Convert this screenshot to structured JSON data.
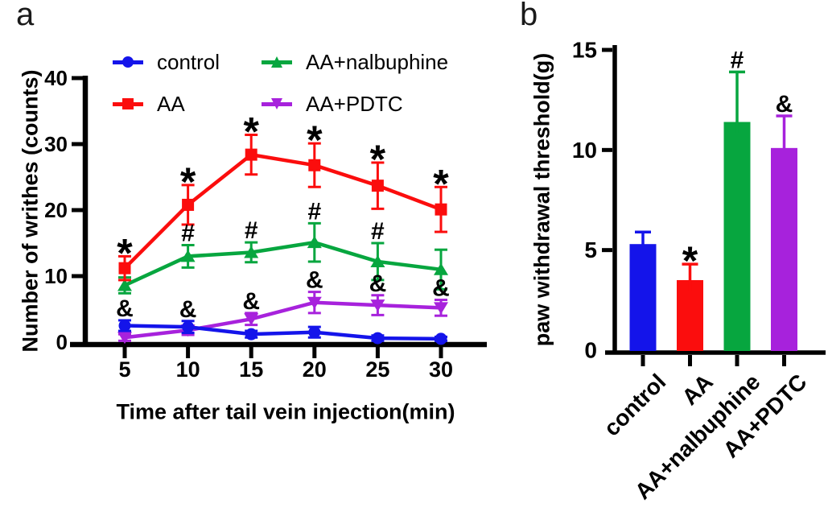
{
  "panel_a": {
    "letter": "a",
    "ylabel": "Number of writhes (counts)",
    "xlabel": "Time after tail vein injection(min)"
  },
  "panel_b": {
    "letter": "b",
    "ylabel": "paw withdrawal threshold(g)"
  },
  "significance_symbols": [
    "*",
    "#",
    "&"
  ],
  "chart_data": [
    {
      "type": "line",
      "panel": "a",
      "title": "",
      "xlabel": "Time after tail vein injection(min)",
      "ylabel": "Number of writhes (counts)",
      "x": [
        5,
        10,
        15,
        20,
        25,
        30
      ],
      "xticks": [
        5,
        10,
        15,
        20,
        25,
        30
      ],
      "yticks": [
        0,
        10,
        20,
        30,
        40
      ],
      "ylim": [
        0,
        40
      ],
      "grid": false,
      "legend_position": "top-inside",
      "series": [
        {
          "name": "control",
          "color": "#1414ea",
          "marker": "circle",
          "values": [
            2.5,
            2.3,
            1.2,
            1.5,
            0.6,
            0.5
          ],
          "errors": [
            0.8,
            0.9,
            0.5,
            0.8,
            0.4,
            0.3
          ],
          "sig": [
            "&",
            "&",
            "",
            "",
            "",
            ""
          ]
        },
        {
          "name": "AA",
          "color": "#fb0d0d",
          "marker": "square",
          "values": [
            11.2,
            20.8,
            28.4,
            26.8,
            23.7,
            20.1
          ],
          "errors": [
            1.8,
            3.0,
            3.0,
            3.3,
            3.5,
            3.4
          ],
          "sig": [
            "*",
            "*",
            "*",
            "*",
            "*",
            "*"
          ]
        },
        {
          "name": "AA+nalbuphine",
          "color": "#07a63f",
          "marker": "triangle-up",
          "values": [
            8.6,
            13.0,
            13.6,
            15.1,
            12.2,
            11.0
          ],
          "errors": [
            1.2,
            1.7,
            1.5,
            2.9,
            2.8,
            3.0
          ],
          "sig": [
            "",
            "#",
            "#",
            "#",
            "#",
            ""
          ]
        },
        {
          "name": "AA+PDTC",
          "color": "#a722dc",
          "marker": "triangle-down",
          "values": [
            0.7,
            1.8,
            3.5,
            6.0,
            5.6,
            5.2
          ],
          "errors": [
            0.5,
            0.7,
            0.9,
            1.6,
            1.5,
            1.2
          ],
          "sig": [
            "",
            "",
            "&",
            "&",
            "&",
            "&"
          ]
        }
      ]
    },
    {
      "type": "bar",
      "panel": "b",
      "title": "",
      "xlabel": "",
      "ylabel": "paw withdrawal threshold(g)",
      "categories": [
        "control",
        "AA",
        "AA+nalbuphine",
        "AA+PDTC"
      ],
      "values": [
        5.3,
        3.5,
        11.4,
        10.1
      ],
      "errors": [
        0.6,
        0.8,
        2.5,
        1.6
      ],
      "colors": [
        "#1414ea",
        "#fb0d0d",
        "#07a63f",
        "#a722dc"
      ],
      "sig": [
        "",
        "*",
        "#",
        "&"
      ],
      "yticks": [
        0,
        5,
        10,
        15
      ],
      "ylim": [
        0,
        15
      ],
      "grid": false
    }
  ]
}
